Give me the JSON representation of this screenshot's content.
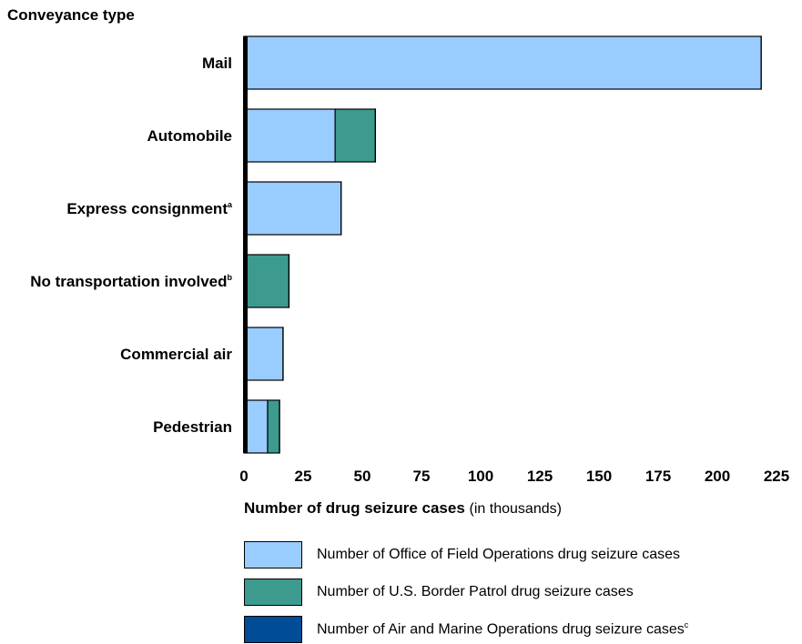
{
  "chart_data": {
    "type": "bar",
    "orientation": "horizontal",
    "stacked": true,
    "ylabel": "Conveyance type",
    "xlabel": "Number of drug seizure cases",
    "xlabel_suffix": "(in thousands)",
    "xlim": [
      0,
      225
    ],
    "xticks": [
      0,
      25,
      50,
      75,
      100,
      125,
      150,
      175,
      200,
      225
    ],
    "grid": false,
    "legend_position": "bottom",
    "categories": [
      {
        "label": "Mail",
        "sup": ""
      },
      {
        "label": "Automobile",
        "sup": ""
      },
      {
        "label": "Express consignment",
        "sup": "a"
      },
      {
        "label": "No transportation involved",
        "sup": "b"
      },
      {
        "label": "Commercial air",
        "sup": ""
      },
      {
        "label": "Pedestrian",
        "sup": ""
      }
    ],
    "series": [
      {
        "name": "Number of Office of Field Operations drug seizure cases",
        "sup": "",
        "color": "#99ccff",
        "values": [
          218.5,
          38.5,
          41,
          0.5,
          16.5,
          10
        ]
      },
      {
        "name": "Number of U.S. Border Patrol drug seizure cases",
        "sup": "",
        "color": "#3d9a8f",
        "values": [
          0,
          17,
          0,
          18.5,
          0,
          5
        ]
      },
      {
        "name": "Number of Air and Marine Operations drug seizure cases",
        "sup": "c",
        "color": "#004c97",
        "values": [
          0.05,
          0.05,
          0.05,
          0.05,
          0.05,
          0.05
        ]
      }
    ]
  }
}
